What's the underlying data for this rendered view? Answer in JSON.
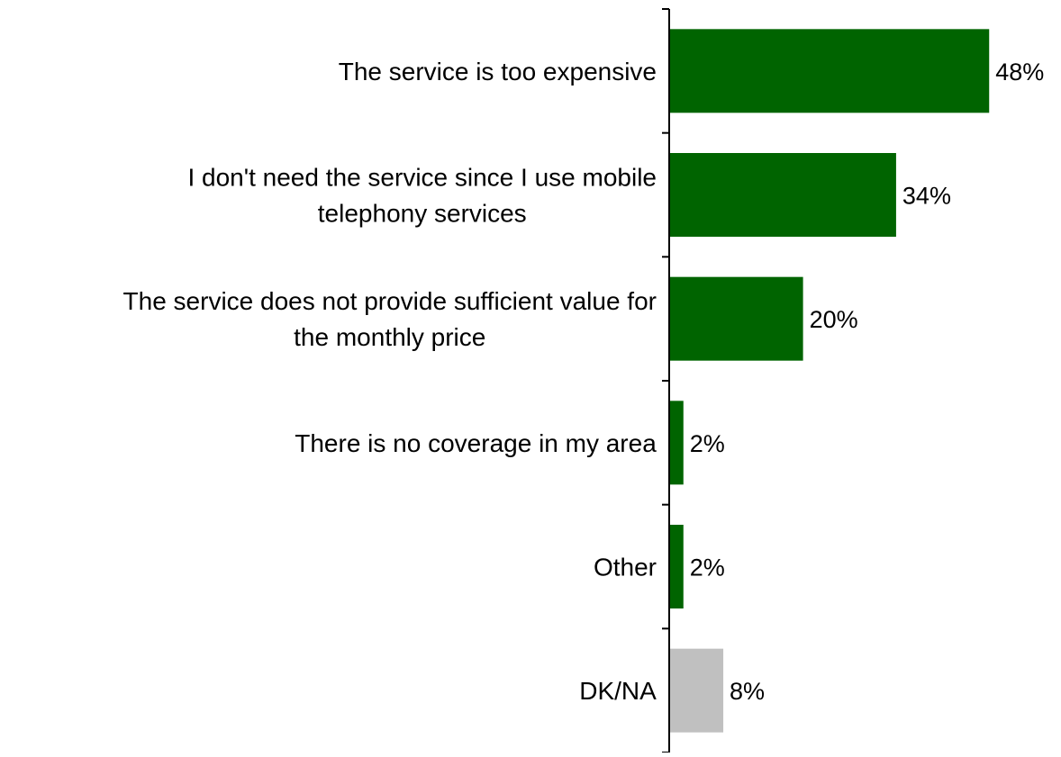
{
  "chart_data": {
    "type": "bar",
    "orientation": "horizontal",
    "categories": [
      "The service is too expensive",
      "I don't need the service since I use mobile telephony services",
      "The service does not provide sufficient value for the monthly price",
      "There is no coverage in my area",
      "Other",
      "DK/NA"
    ],
    "category_lines": [
      [
        "The service is too expensive"
      ],
      [
        "I don't need the service since I use mobile",
        "telephony services"
      ],
      [
        "The service does not provide sufficient value for",
        "the monthly price"
      ],
      [
        "There is no coverage in my area"
      ],
      [
        "Other"
      ],
      [
        "DK/NA"
      ]
    ],
    "values": [
      48,
      34,
      20,
      2,
      2,
      8
    ],
    "value_labels": [
      "48%",
      "34%",
      "20%",
      "2%",
      "2%",
      "8%"
    ],
    "bar_colors": [
      "#006400",
      "#006400",
      "#006400",
      "#006400",
      "#006400",
      "#c0c0c0"
    ],
    "title": "",
    "xlabel": "",
    "ylabel": "",
    "xlim": [
      0,
      50
    ],
    "grid": false,
    "legend": "none"
  },
  "colors": {
    "primary": "#006400",
    "neutral": "#c0c0c0",
    "axis": "#000000"
  }
}
